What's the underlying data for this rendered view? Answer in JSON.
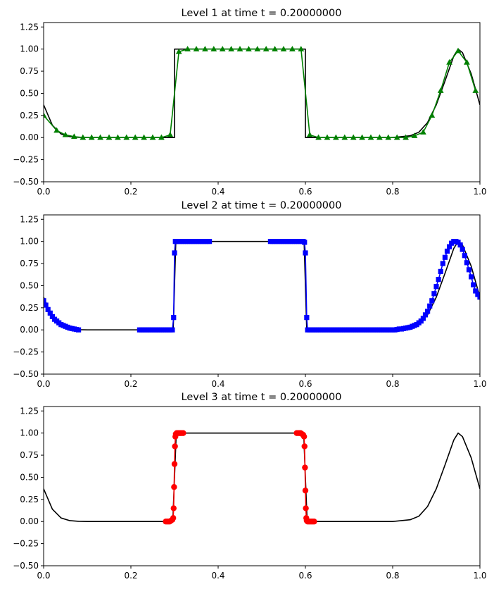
{
  "chart_data": [
    {
      "type": "line",
      "title": "Level 1 at time t =     0.20000000",
      "xlim": [
        0,
        1
      ],
      "ylim": [
        -0.5,
        1.3
      ],
      "xticks": [
        0,
        0.2,
        0.4,
        0.6,
        0.8,
        1.0
      ],
      "xtick_labels": [
        "0.0",
        "0.2",
        "0.4",
        "0.6",
        "0.8",
        "1.0"
      ],
      "yticks": [
        -0.5,
        -0.25,
        0,
        0.25,
        0.5,
        0.75,
        1.0,
        1.25
      ],
      "ytick_labels": [
        "−0.50",
        "−0.25",
        "0.00",
        "0.25",
        "0.50",
        "0.75",
        "1.00",
        "1.25"
      ],
      "grid": false,
      "series": [
        {
          "role": "true-solution",
          "color": "#000000",
          "marker": "none",
          "style": "solid",
          "x": [
            0.0,
            0.02,
            0.04,
            0.06,
            0.08,
            0.1,
            0.15,
            0.3,
            0.3,
            0.6,
            0.6,
            0.75,
            0.8,
            0.84,
            0.86,
            0.88,
            0.9,
            0.92,
            0.94,
            0.95,
            0.96,
            0.98,
            1.0
          ],
          "y": [
            0.37,
            0.14,
            0.04,
            0.01,
            0.002,
            0.0,
            0.0,
            0.0,
            1.0,
            1.0,
            0.0,
            0.0,
            0.0,
            0.02,
            0.06,
            0.17,
            0.37,
            0.64,
            0.92,
            1.0,
            0.96,
            0.72,
            0.37
          ]
        },
        {
          "role": "numerical-solution",
          "color": "#008000",
          "marker": "triangle",
          "style": "solid",
          "x": [
            0.0,
            0.03,
            0.05,
            0.07,
            0.09,
            0.11,
            0.13,
            0.15,
            0.17,
            0.19,
            0.21,
            0.23,
            0.25,
            0.27,
            0.29,
            0.31,
            0.33,
            0.35,
            0.37,
            0.39,
            0.41,
            0.43,
            0.45,
            0.47,
            0.49,
            0.51,
            0.53,
            0.55,
            0.57,
            0.59,
            0.61,
            0.63,
            0.65,
            0.67,
            0.69,
            0.71,
            0.73,
            0.75,
            0.77,
            0.79,
            0.81,
            0.83,
            0.85,
            0.87,
            0.89,
            0.91,
            0.93,
            0.95,
            0.97,
            0.99
          ],
          "y": [
            0.25,
            0.08,
            0.03,
            0.01,
            0.0,
            0.0,
            0.0,
            0.0,
            0.0,
            0.0,
            0.0,
            0.0,
            0.0,
            0.0,
            0.03,
            0.97,
            1.0,
            1.0,
            1.0,
            1.0,
            1.0,
            1.0,
            1.0,
            1.0,
            1.0,
            1.0,
            1.0,
            1.0,
            1.0,
            1.0,
            0.03,
            0.0,
            0.0,
            0.0,
            0.0,
            0.0,
            0.0,
            0.0,
            0.0,
            0.0,
            0.0,
            0.0,
            0.02,
            0.06,
            0.25,
            0.53,
            0.85,
            0.98,
            0.85,
            0.53
          ]
        }
      ]
    },
    {
      "type": "line",
      "title": "Level 2 at time t =     0.20000000",
      "xlim": [
        0,
        1
      ],
      "ylim": [
        -0.5,
        1.3
      ],
      "xticks": [
        0,
        0.2,
        0.4,
        0.6,
        0.8,
        1.0
      ],
      "xtick_labels": [
        "0.0",
        "0.2",
        "0.4",
        "0.6",
        "0.8",
        "1.0"
      ],
      "yticks": [
        -0.5,
        -0.25,
        0,
        0.25,
        0.5,
        0.75,
        1.0,
        1.25
      ],
      "ytick_labels": [
        "−0.50",
        "−0.25",
        "0.00",
        "0.25",
        "0.50",
        "0.75",
        "1.00",
        "1.25"
      ],
      "grid": false,
      "series": [
        {
          "role": "true-solution",
          "color": "#000000",
          "marker": "none",
          "style": "solid",
          "x": [
            0.0,
            0.02,
            0.04,
            0.06,
            0.08,
            0.1,
            0.15,
            0.297,
            0.303,
            0.597,
            0.603,
            0.75,
            0.8,
            0.84,
            0.86,
            0.88,
            0.9,
            0.92,
            0.94,
            0.95,
            0.96,
            0.98,
            1.0
          ],
          "y": [
            0.37,
            0.14,
            0.04,
            0.01,
            0.002,
            0.0,
            0.0,
            0.0,
            1.0,
            1.0,
            0.0,
            0.0,
            0.0,
            0.02,
            0.06,
            0.17,
            0.37,
            0.64,
            0.92,
            1.0,
            0.96,
            0.72,
            0.37
          ]
        },
        {
          "role": "numerical-solution",
          "color": "#0000ff",
          "marker": "square",
          "style": "solid",
          "segments": [
            {
              "x": [
                0.0,
                0.005,
                0.01,
                0.015,
                0.02,
                0.025,
                0.03,
                0.035,
                0.04,
                0.045,
                0.05,
                0.055,
                0.06,
                0.065,
                0.07,
                0.075,
                0.08
              ],
              "y": [
                0.33,
                0.28,
                0.23,
                0.19,
                0.15,
                0.12,
                0.1,
                0.08,
                0.06,
                0.05,
                0.04,
                0.03,
                0.02,
                0.015,
                0.01,
                0.005,
                0.0
              ]
            },
            {
              "x": [
                0.22,
                0.225,
                0.23,
                0.235,
                0.24,
                0.245,
                0.25,
                0.255,
                0.26,
                0.265,
                0.27,
                0.275,
                0.28,
                0.285,
                0.29,
                0.295,
                0.298,
                0.3,
                0.302,
                0.305,
                0.31,
                0.315,
                0.32,
                0.325,
                0.33,
                0.335,
                0.34,
                0.345,
                0.35,
                0.355,
                0.36,
                0.365,
                0.37,
                0.375,
                0.38
              ],
              "y": [
                0.0,
                0.0,
                0.0,
                0.0,
                0.0,
                0.0,
                0.0,
                0.0,
                0.0,
                0.0,
                0.0,
                0.0,
                0.0,
                0.0,
                0.0,
                0.0,
                0.14,
                0.87,
                1.0,
                1.0,
                1.0,
                1.0,
                1.0,
                1.0,
                1.0,
                1.0,
                1.0,
                1.0,
                1.0,
                1.0,
                1.0,
                1.0,
                1.0,
                1.0,
                1.0
              ]
            },
            {
              "x": [
                0.52,
                0.525,
                0.53,
                0.535,
                0.54,
                0.545,
                0.55,
                0.555,
                0.56,
                0.565,
                0.57,
                0.575,
                0.58,
                0.585,
                0.59,
                0.595,
                0.598,
                0.6,
                0.603,
                0.605,
                0.61,
                0.615,
                0.62,
                0.625,
                0.63,
                0.635,
                0.64,
                0.645,
                0.65,
                0.655,
                0.66,
                0.665,
                0.67,
                0.675,
                0.68,
                0.685,
                0.69,
                0.695,
                0.7,
                0.705,
                0.71,
                0.715,
                0.72,
                0.725,
                0.73,
                0.735,
                0.74,
                0.745,
                0.75,
                0.755,
                0.76,
                0.765,
                0.77,
                0.775,
                0.78,
                0.785,
                0.79,
                0.795,
                0.8,
                0.805,
                0.81,
                0.815,
                0.82,
                0.825,
                0.83,
                0.835,
                0.84,
                0.845,
                0.85,
                0.855,
                0.86,
                0.865,
                0.87,
                0.875,
                0.88,
                0.885,
                0.89,
                0.895,
                0.9,
                0.905,
                0.91,
                0.915,
                0.92,
                0.925,
                0.93,
                0.935,
                0.94,
                0.945,
                0.95,
                0.955,
                0.96,
                0.965,
                0.97,
                0.975,
                0.98,
                0.985,
                0.99,
                0.995,
                1.0
              ],
              "y": [
                1.0,
                1.0,
                1.0,
                1.0,
                1.0,
                1.0,
                1.0,
                1.0,
                1.0,
                1.0,
                1.0,
                1.0,
                1.0,
                1.0,
                1.0,
                1.0,
                0.99,
                0.87,
                0.14,
                0.0,
                0.0,
                0.0,
                0.0,
                0.0,
                0.0,
                0.0,
                0.0,
                0.0,
                0.0,
                0.0,
                0.0,
                0.0,
                0.0,
                0.0,
                0.0,
                0.0,
                0.0,
                0.0,
                0.0,
                0.0,
                0.0,
                0.0,
                0.0,
                0.0,
                0.0,
                0.0,
                0.0,
                0.0,
                0.0,
                0.0,
                0.0,
                0.0,
                0.0,
                0.0,
                0.0,
                0.0,
                0.0,
                0.0,
                0.0,
                0.0,
                0.005,
                0.01,
                0.01,
                0.015,
                0.02,
                0.025,
                0.03,
                0.04,
                0.05,
                0.06,
                0.08,
                0.1,
                0.13,
                0.17,
                0.21,
                0.27,
                0.33,
                0.41,
                0.49,
                0.57,
                0.66,
                0.75,
                0.82,
                0.89,
                0.94,
                0.98,
                1.0,
                1.0,
                0.99,
                0.96,
                0.91,
                0.84,
                0.76,
                0.68,
                0.6,
                0.51,
                0.44,
                0.4,
                0.37
              ]
            }
          ]
        }
      ]
    },
    {
      "type": "line",
      "title": "Level 3 at time t =     0.20000000",
      "xlim": [
        0,
        1
      ],
      "ylim": [
        -0.5,
        1.3
      ],
      "xticks": [
        0,
        0.2,
        0.4,
        0.6,
        0.8,
        1.0
      ],
      "xtick_labels": [
        "0.0",
        "0.2",
        "0.4",
        "0.6",
        "0.8",
        "1.0"
      ],
      "yticks": [
        -0.5,
        -0.25,
        0,
        0.25,
        0.5,
        0.75,
        1.0,
        1.25
      ],
      "ytick_labels": [
        "−0.50",
        "−0.25",
        "0.00",
        "0.25",
        "0.50",
        "0.75",
        "1.00",
        "1.25"
      ],
      "grid": false,
      "series": [
        {
          "role": "true-solution",
          "color": "#000000",
          "marker": "none",
          "style": "solid",
          "x": [
            0.0,
            0.02,
            0.04,
            0.06,
            0.08,
            0.1,
            0.15,
            0.296,
            0.304,
            0.596,
            0.604,
            0.75,
            0.8,
            0.84,
            0.86,
            0.88,
            0.9,
            0.92,
            0.94,
            0.95,
            0.96,
            0.98,
            1.0
          ],
          "y": [
            0.37,
            0.14,
            0.04,
            0.01,
            0.002,
            0.0,
            0.0,
            0.0,
            1.0,
            1.0,
            0.0,
            0.0,
            0.0,
            0.02,
            0.06,
            0.17,
            0.37,
            0.64,
            0.92,
            1.0,
            0.96,
            0.72,
            0.37
          ]
        },
        {
          "role": "numerical-solution",
          "color": "#ff0000",
          "marker": "circle",
          "style": "solid",
          "segments": [
            {
              "x": [
                0.28,
                0.283,
                0.286,
                0.289,
                0.292,
                0.295,
                0.297,
                0.298,
                0.299,
                0.3,
                0.301,
                0.302,
                0.303,
                0.305,
                0.308,
                0.311,
                0.314,
                0.317,
                0.32
              ],
              "y": [
                0.0,
                0.0,
                0.0,
                0.0,
                0.01,
                0.02,
                0.04,
                0.15,
                0.39,
                0.65,
                0.85,
                0.96,
                0.99,
                1.0,
                1.0,
                1.0,
                1.0,
                1.0,
                1.0
              ]
            },
            {
              "x": [
                0.58,
                0.583,
                0.586,
                0.589,
                0.592,
                0.595,
                0.597,
                0.598,
                0.599,
                0.6,
                0.601,
                0.602,
                0.603,
                0.605,
                0.608,
                0.611,
                0.614,
                0.617,
                0.62
              ],
              "y": [
                1.0,
                1.0,
                1.0,
                1.0,
                0.99,
                0.98,
                0.96,
                0.85,
                0.61,
                0.35,
                0.15,
                0.04,
                0.01,
                0.0,
                0.0,
                0.0,
                0.0,
                0.0,
                0.0
              ]
            }
          ]
        }
      ]
    }
  ]
}
